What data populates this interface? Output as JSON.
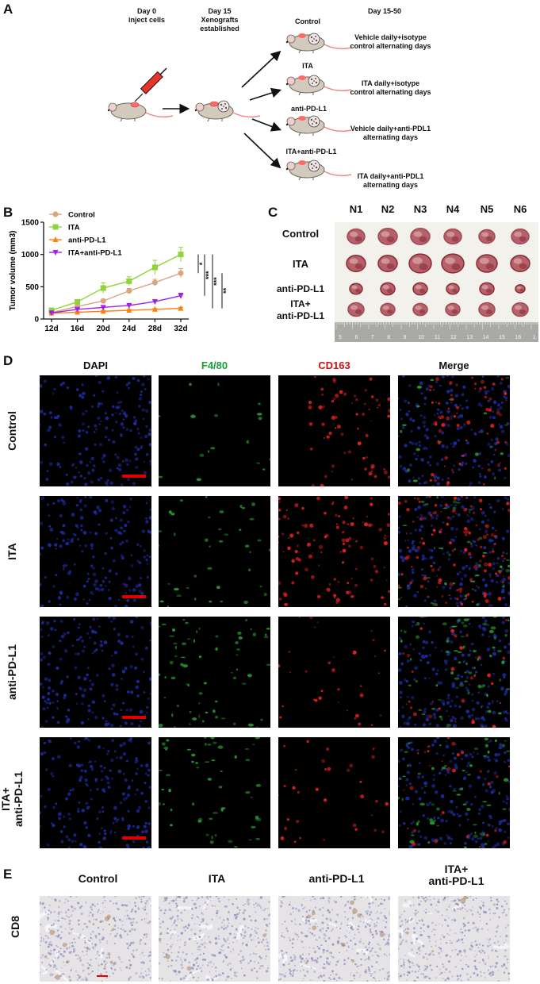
{
  "panel_labels": {
    "a": "A",
    "b": "B",
    "c": "C",
    "d": "D",
    "e": "E"
  },
  "panel_a": {
    "day0": "Day 0\ninject cells",
    "day15": "Day 15\nXenografts\nestablished",
    "day1550": "Day 15-50",
    "groups": [
      {
        "name": "Control",
        "treatment": "Vehicle daily+isotype\ncontrol alternating days"
      },
      {
        "name": "ITA",
        "treatment": "ITA daily+isotype\ncontrol alternating days"
      },
      {
        "name": "anti-PD-L1",
        "treatment": "Vehicle daily+anti-PDL1\nalternating days"
      },
      {
        "name": "ITA+anti-PD-L1",
        "treatment": "ITA daily+anti-PDL1\nalternating days"
      }
    ]
  },
  "chart_data": {
    "type": "line",
    "ylabel": "Tumor volume (mm3)",
    "xlabel": "",
    "categories": [
      "12d",
      "16d",
      "20d",
      "24d",
      "28d",
      "32d"
    ],
    "ylim": [
      0,
      1500
    ],
    "yticks": [
      "0",
      "500",
      "1000",
      "1500"
    ],
    "legend_position": "top-left",
    "series": [
      {
        "name": "Control",
        "color": "#d9a57f",
        "marker": "circle",
        "values": [
          100,
          195,
          280,
          435,
          565,
          710
        ],
        "errors": [
          15,
          20,
          25,
          40,
          50,
          70
        ]
      },
      {
        "name": "ITA",
        "color": "#8ed438",
        "marker": "square",
        "values": [
          135,
          265,
          480,
          585,
          800,
          1000
        ],
        "errors": [
          15,
          25,
          80,
          70,
          110,
          110
        ]
      },
      {
        "name": "anti-PD-L1",
        "color": "#ff7f0e",
        "marker": "triangle-up",
        "values": [
          90,
          105,
          120,
          135,
          150,
          165
        ],
        "errors": [
          10,
          10,
          12,
          12,
          12,
          15
        ]
      },
      {
        "name": "ITA+anti-PD-L1",
        "color": "#a020f0",
        "marker": "triangle-down",
        "values": [
          95,
          150,
          180,
          210,
          270,
          360
        ],
        "errors": [
          10,
          15,
          20,
          20,
          25,
          40
        ]
      }
    ],
    "significance": [
      "*",
      "***",
      "***",
      "**"
    ]
  },
  "panel_c": {
    "columns": [
      "N1",
      "N2",
      "N3",
      "N4",
      "N5",
      "N6"
    ],
    "rows": [
      "Control",
      "ITA",
      "anti-PD-L1",
      "ITA+\nanti-PD-L1"
    ],
    "ruler": [
      "5",
      "6",
      "7",
      "8",
      "9",
      "10",
      "11",
      "12",
      "13",
      "14",
      "15",
      "16",
      "1"
    ]
  },
  "panel_d": {
    "columns": [
      {
        "label": "DAPI",
        "color": "#111111"
      },
      {
        "label": "F4/80",
        "color": "#1a9e3a"
      },
      {
        "label": "CD163",
        "color": "#d01010"
      },
      {
        "label": "Merge",
        "color": "#111111"
      }
    ],
    "rows": [
      "Control",
      "ITA",
      "anti-PD-L1",
      "ITA+\nanti-PD-L1"
    ]
  },
  "panel_e": {
    "columns": [
      "Control",
      "ITA",
      "anti-PD-L1",
      "ITA+\nanti-PD-L1"
    ],
    "row": "CD8"
  }
}
